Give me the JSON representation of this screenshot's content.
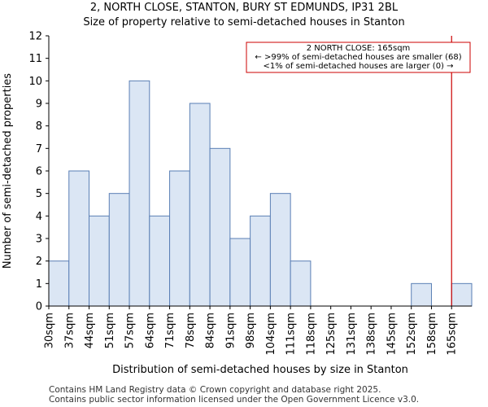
{
  "chart_data": {
    "type": "bar",
    "title": "2, NORTH CLOSE, STANTON, BURY ST EDMUNDS, IP31 2BL",
    "subtitle": "Size of property relative to semi-detached houses in Stanton",
    "xlabel": "Distribution of semi-detached houses by size in Stanton",
    "ylabel": "Number of semi-detached properties",
    "categories": [
      "30sqm",
      "37sqm",
      "44sqm",
      "51sqm",
      "57sqm",
      "64sqm",
      "71sqm",
      "78sqm",
      "84sqm",
      "91sqm",
      "98sqm",
      "104sqm",
      "111sqm",
      "118sqm",
      "125sqm",
      "131sqm",
      "138sqm",
      "145sqm",
      "152sqm",
      "158sqm",
      "165sqm"
    ],
    "values": [
      2,
      6,
      4,
      5,
      10,
      4,
      6,
      9,
      7,
      3,
      4,
      5,
      2,
      0,
      0,
      0,
      0,
      0,
      1,
      0,
      1
    ],
    "ylim": [
      0,
      12
    ],
    "yticks": [
      "0",
      "1",
      "2",
      "3",
      "4",
      "5",
      "6",
      "7",
      "8",
      "9",
      "10",
      "11",
      "12"
    ],
    "grid": false,
    "bar_color": "#dbe6f4",
    "bar_edge_color": "#5a7fb5",
    "marker_color": "#cc0000",
    "marker_category": "165sqm",
    "annotation": {
      "line1": "2 NORTH CLOSE: 165sqm",
      "line2": "← >99% of semi-detached houses are smaller (68)",
      "line3": "<1% of semi-detached houses are larger (0) →"
    }
  },
  "footer": {
    "line1": "Contains HM Land Registry data © Crown copyright and database right 2025.",
    "line2": "Contains public sector information licensed under the Open Government Licence v3.0."
  }
}
